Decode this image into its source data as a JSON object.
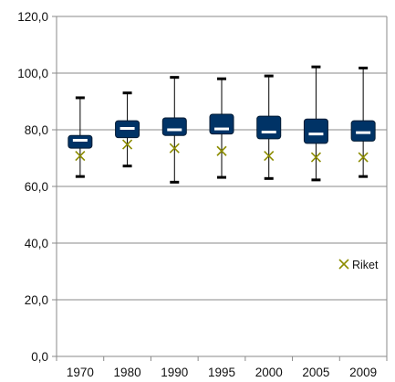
{
  "chart_data": {
    "type": "box",
    "categories": [
      "1970",
      "1980",
      "1990",
      "1995",
      "2000",
      "2005",
      "2009"
    ],
    "series": [
      {
        "kind": "box",
        "min": [
          63.5,
          67.2,
          61.5,
          63.2,
          62.8,
          62.3,
          63.5
        ],
        "q1": [
          73.5,
          77.2,
          78.0,
          78.5,
          76.8,
          75.2,
          76.0
        ],
        "median": [
          76.3,
          80.5,
          80.0,
          80.3,
          79.2,
          78.5,
          79.0
        ],
        "q3": [
          78.0,
          83.2,
          84.2,
          85.5,
          84.8,
          83.8,
          83.2
        ],
        "max": [
          91.3,
          93.0,
          98.5,
          98.0,
          99.0,
          102.2,
          101.8
        ],
        "color": "#003366",
        "median_color": "#ffffff"
      },
      {
        "kind": "marker",
        "name": "Riket",
        "values": [
          70.8,
          74.8,
          73.5,
          72.5,
          70.8,
          70.3,
          70.3
        ],
        "color": "#8c8c00"
      }
    ],
    "yticks": [
      "0,0",
      "20,0",
      "40,0",
      "60,0",
      "80,0",
      "100,0",
      "120,0"
    ],
    "ylim": [
      0,
      120
    ],
    "grid": true,
    "legend_position": "right",
    "title": "",
    "xlabel": "",
    "ylabel": ""
  }
}
